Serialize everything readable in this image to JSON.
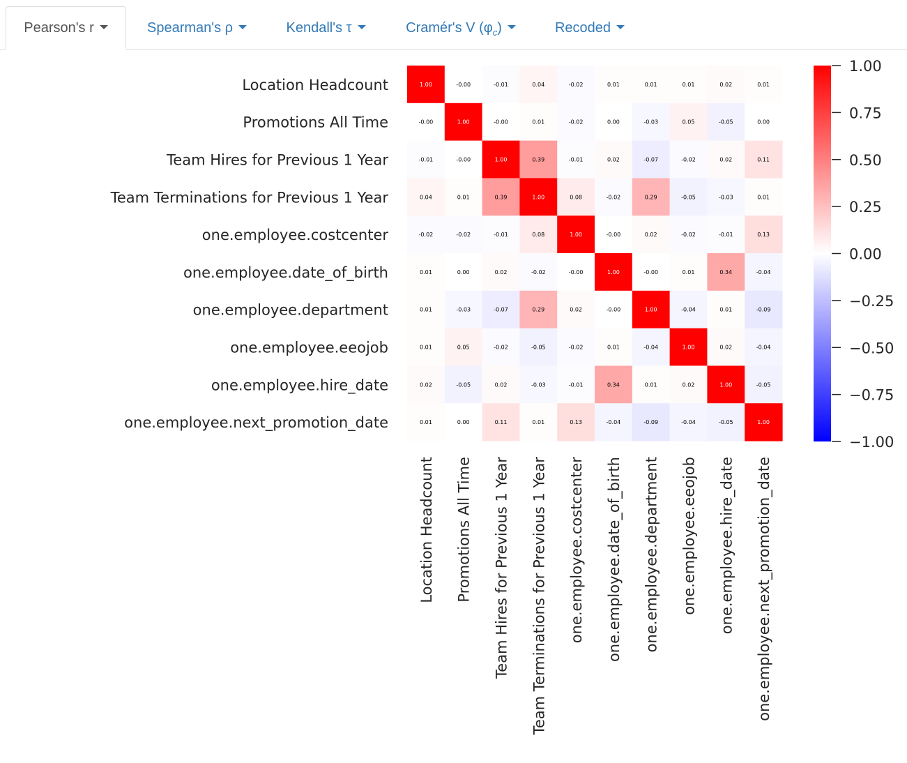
{
  "tabs": [
    {
      "label": "Pearson's r",
      "active": true
    },
    {
      "label": "Spearman's ρ",
      "active": false
    },
    {
      "label": "Kendall's τ",
      "active": false
    },
    {
      "label": "Cramér's V (φ",
      "sub": "c",
      "suffix": ")",
      "active": false
    },
    {
      "label": "Recoded",
      "active": false
    }
  ],
  "colors": {
    "tab_link": "#337ab7",
    "tab_active": "#555555",
    "positive": "#ff0000",
    "negative": "#0000ff",
    "zero": "#ffffff"
  },
  "chart_data": {
    "type": "heatmap",
    "colormap": "bwr",
    "vmin": -1.0,
    "vmax": 1.0,
    "labels": [
      "Location Headcount",
      "Promotions All Time",
      "Team Hires for Previous 1 Year",
      "Team Terminations for Previous 1 Year",
      "one.employee.costcenter",
      "one.employee.date_of_birth",
      "one.employee.department",
      "one.employee.eeojob",
      "one.employee.hire_date",
      "one.employee.next_promotion_date"
    ],
    "cell_labels": [
      [
        "1.00",
        "-0.00",
        "-0.01",
        "0.04",
        "-0.02",
        "0.01",
        "0.01",
        "0.01",
        "0.02",
        "0.01"
      ],
      [
        "-0.00",
        "1.00",
        "-0.00",
        "0.01",
        "-0.02",
        "0.00",
        "-0.03",
        "0.05",
        "-0.05",
        "0.00"
      ],
      [
        "-0.01",
        "-0.00",
        "1.00",
        "0.39",
        "-0.01",
        "0.02",
        "-0.07",
        "-0.02",
        "0.02",
        "0.11"
      ],
      [
        "0.04",
        "0.01",
        "0.39",
        "1.00",
        "0.08",
        "-0.02",
        "0.29",
        "-0.05",
        "-0.03",
        "0.01"
      ],
      [
        "-0.02",
        "-0.02",
        "-0.01",
        "0.08",
        "1.00",
        "-0.00",
        "0.02",
        "-0.02",
        "-0.01",
        "0.13"
      ],
      [
        "0.01",
        "0.00",
        "0.02",
        "-0.02",
        "-0.00",
        "1.00",
        "-0.00",
        "0.01",
        "0.34",
        "-0.04"
      ],
      [
        "0.01",
        "-0.03",
        "-0.07",
        "0.29",
        "0.02",
        "-0.00",
        "1.00",
        "-0.04",
        "0.01",
        "-0.09"
      ],
      [
        "0.01",
        "0.05",
        "-0.02",
        "-0.05",
        "-0.02",
        "0.01",
        "-0.04",
        "1.00",
        "0.02",
        "-0.04"
      ],
      [
        "0.02",
        "-0.05",
        "0.02",
        "-0.03",
        "-0.01",
        "0.34",
        "0.01",
        "0.02",
        "1.00",
        "-0.05"
      ],
      [
        "0.01",
        "0.00",
        "0.11",
        "0.01",
        "0.13",
        "-0.04",
        "-0.09",
        "-0.04",
        "-0.05",
        "1.00"
      ]
    ],
    "colorbar_ticks": [
      "1.00",
      "0.75",
      "0.50",
      "0.25",
      "0.00",
      "−0.25",
      "−0.50",
      "−0.75",
      "−1.00"
    ],
    "colorbar_values": [
      1.0,
      0.75,
      0.5,
      0.25,
      0.0,
      -0.25,
      -0.5,
      -0.75,
      -1.0
    ]
  }
}
